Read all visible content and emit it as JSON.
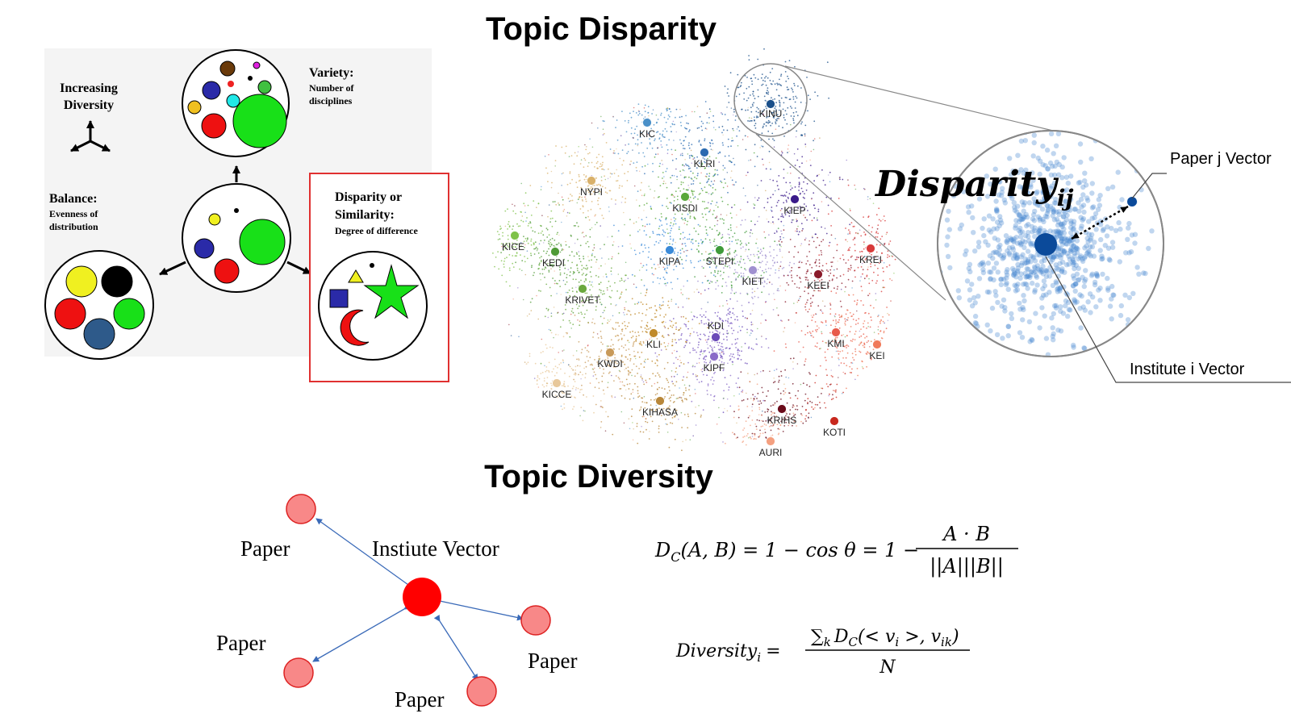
{
  "titles": {
    "disparity": "Topic Disparity",
    "diversity": "Topic Diversity"
  },
  "stirling": {
    "increasing": [
      "Increasing",
      "Diversity"
    ],
    "variety": {
      "heading": "Variety:",
      "desc": [
        "Number of",
        "disciplines"
      ]
    },
    "balance": {
      "heading": "Balance:",
      "desc": [
        "Evenness of",
        "distribution"
      ]
    },
    "disparity": {
      "heading": [
        "Disparity or",
        "Similarity:"
      ],
      "desc": "Degree of difference"
    },
    "highlight_color": "#e03030"
  },
  "scatter": {
    "institutes": [
      {
        "name": "KINU",
        "color": "#1a4f8a"
      },
      {
        "name": "KIC",
        "color": "#4a90c8"
      },
      {
        "name": "KLRI",
        "color": "#2a6ab0"
      },
      {
        "name": "NYPI",
        "color": "#d9b16a"
      },
      {
        "name": "KISDI",
        "color": "#5aa83a"
      },
      {
        "name": "KIEP",
        "color": "#3a1a8a"
      },
      {
        "name": "KICE",
        "color": "#7fc24a"
      },
      {
        "name": "KEDI",
        "color": "#4f9a36"
      },
      {
        "name": "KIPA",
        "color": "#3a8ad8"
      },
      {
        "name": "STEPI",
        "color": "#3e9a3a"
      },
      {
        "name": "KIET",
        "color": "#a090d0"
      },
      {
        "name": "KEEI",
        "color": "#8a1a2a"
      },
      {
        "name": "KREI",
        "color": "#d83a3a"
      },
      {
        "name": "KRIVET",
        "color": "#6aa83e"
      },
      {
        "name": "KDI",
        "color": "#6a4ab8"
      },
      {
        "name": "KLI",
        "color": "#c08a2a"
      },
      {
        "name": "KMI",
        "color": "#e85a4a"
      },
      {
        "name": "KEI",
        "color": "#f07a5a"
      },
      {
        "name": "KWDI",
        "color": "#c89a5a"
      },
      {
        "name": "KIPF",
        "color": "#8a6ac8"
      },
      {
        "name": "KICCE",
        "color": "#e8c89a"
      },
      {
        "name": "KIHASA",
        "color": "#b8873a"
      },
      {
        "name": "KRIHS",
        "color": "#6a0a1a"
      },
      {
        "name": "KOTI",
        "color": "#c8281e"
      },
      {
        "name": "AURI",
        "color": "#f4a080"
      }
    ],
    "zoom": {
      "label": "Disparity",
      "subscript": "ij",
      "paper_label": "Paper j Vector",
      "institute_label": "Institute i Vector"
    }
  },
  "network": {
    "center_label": "Instiute Vector",
    "paper_label": "Paper",
    "papers": 4
  },
  "formulas": {
    "cosine_lhs": "D",
    "cosine_sub": "C",
    "cosine_args": "(A, B) = 1 − cos θ = 1 −",
    "cosine_num": "A · B",
    "cosine_den": "||A|||B||",
    "div_lhs": "Diversity",
    "div_sub": "i",
    "div_eq": "=",
    "div_num_prefix": "∑",
    "div_num_k": "k",
    "div_num_body": "D",
    "div_num_c": "C",
    "div_num_args": "(< v",
    "div_num_i": "i",
    "div_num_mid": " >, v",
    "div_num_ik": "ik",
    "div_num_end": ")",
    "div_den": "N"
  }
}
